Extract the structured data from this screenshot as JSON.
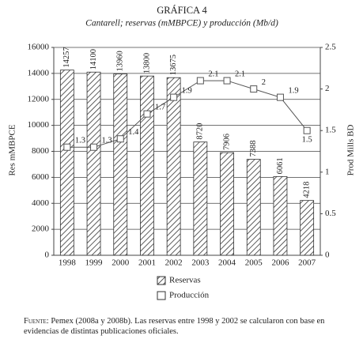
{
  "chart_data": {
    "type": "bar-line",
    "title": "GRÁFICA 4",
    "subtitle": "Cantarell; reservas (mMBPCE) y producción (Mb/d)",
    "y_label": "Res mMBPCE",
    "y2_label": "Prod Mills BD",
    "categories": [
      "1998",
      "1999",
      "2000",
      "2001",
      "2002",
      "2003",
      "2004",
      "2005",
      "2006",
      "2007"
    ],
    "series": [
      {
        "name": "Reservas",
        "type": "bar",
        "color": "#333333",
        "values": [
          14257,
          14100,
          13960,
          13800,
          13675,
          8720,
          7906,
          7388,
          6061,
          4218
        ]
      },
      {
        "name": "Producción",
        "type": "line",
        "axis": "y2",
        "color": "#555555",
        "values": [
          1.3,
          1.3,
          1.4,
          1.7,
          1.9,
          2.1,
          2.1,
          2,
          1.9,
          1.5
        ]
      }
    ],
    "ylim": [
      0,
      16000
    ],
    "yticks": [
      0,
      2000,
      4000,
      6000,
      8000,
      10000,
      12000,
      14000,
      16000
    ],
    "y2lim": [
      0,
      2.5
    ],
    "y2ticks": [
      0,
      0.5,
      1,
      1.5,
      2,
      2.5
    ],
    "grid": true,
    "source_label": "Fuente:",
    "source": "Pemex (2008a y 2008b). Las reservas entre 1998 y 2002 se calcularon con base en evidencias de distintas publicaciones oficiales."
  }
}
